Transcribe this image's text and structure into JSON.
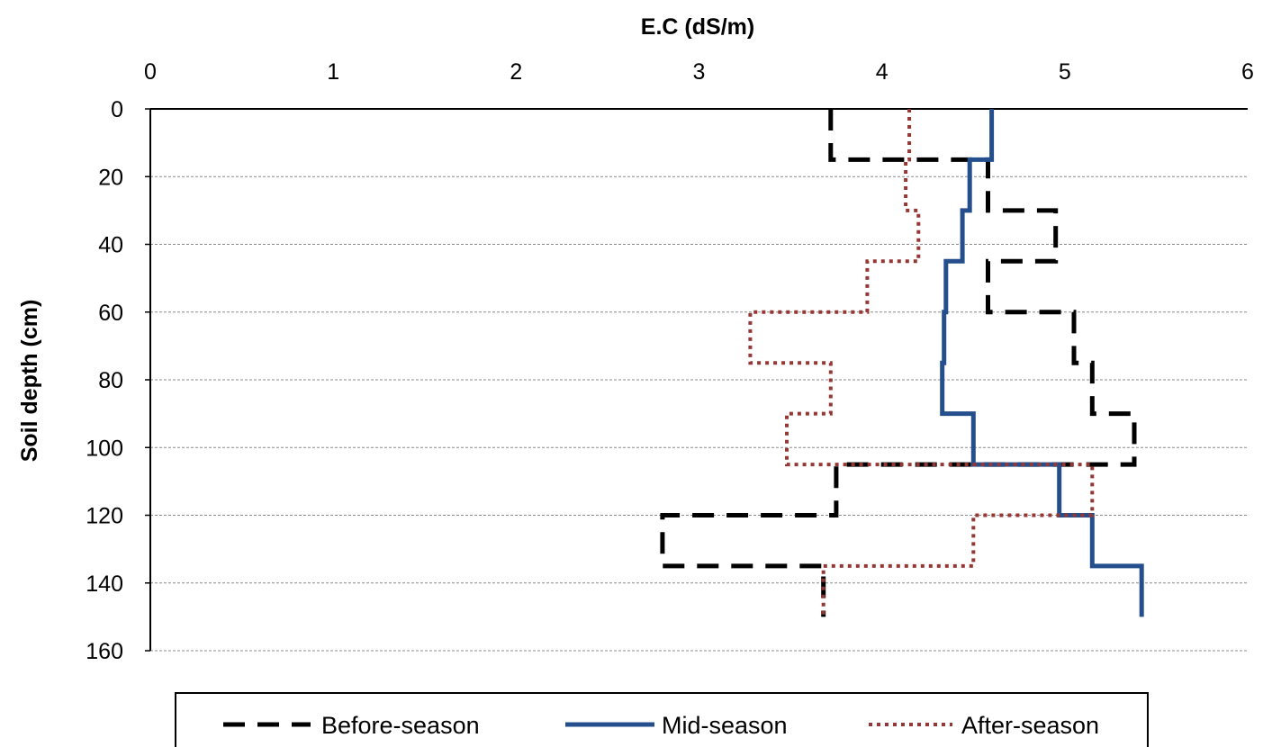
{
  "chart_data": {
    "type": "line",
    "orientation": "depth-profile",
    "xlabel": "E.C (dS/m)",
    "ylabel": "Soil depth (cm)",
    "xlim": [
      0,
      6
    ],
    "ylim": [
      0,
      160
    ],
    "y_inverted": true,
    "x_axis_position": "top",
    "x_ticks": [
      "0",
      "1",
      "2",
      "3",
      "4",
      "5",
      "6"
    ],
    "y_ticks": [
      "0",
      "20",
      "40",
      "60",
      "80",
      "100",
      "120",
      "140",
      "160"
    ],
    "grid": "horizontal dashed",
    "legend_placement": "bottom",
    "series": [
      {
        "name": "Before-season",
        "color": "#000000",
        "style": "dashed",
        "points": [
          [
            3.72,
            0
          ],
          [
            3.72,
            15
          ],
          [
            4.58,
            15
          ],
          [
            4.58,
            30
          ],
          [
            4.95,
            30
          ],
          [
            4.95,
            45
          ],
          [
            4.58,
            45
          ],
          [
            4.58,
            60
          ],
          [
            5.05,
            60
          ],
          [
            5.05,
            75
          ],
          [
            5.15,
            75
          ],
          [
            5.15,
            90
          ],
          [
            5.38,
            90
          ],
          [
            5.38,
            105
          ],
          [
            3.75,
            105
          ],
          [
            3.75,
            120
          ],
          [
            2.8,
            120
          ],
          [
            2.8,
            135
          ],
          [
            3.68,
            135
          ],
          [
            3.68,
            150
          ]
        ]
      },
      {
        "name": "Mid-season",
        "color": "#254f8c",
        "style": "solid",
        "points": [
          [
            4.6,
            0
          ],
          [
            4.6,
            15
          ],
          [
            4.48,
            15
          ],
          [
            4.48,
            30
          ],
          [
            4.44,
            30
          ],
          [
            4.44,
            45
          ],
          [
            4.35,
            45
          ],
          [
            4.35,
            60
          ],
          [
            4.34,
            60
          ],
          [
            4.34,
            75
          ],
          [
            4.33,
            75
          ],
          [
            4.33,
            90
          ],
          [
            4.5,
            90
          ],
          [
            4.5,
            105
          ],
          [
            4.97,
            105
          ],
          [
            4.97,
            120
          ],
          [
            5.15,
            120
          ],
          [
            5.15,
            135
          ],
          [
            5.42,
            135
          ],
          [
            5.42,
            150
          ]
        ]
      },
      {
        "name": "After-season",
        "color": "#953735",
        "style": "dotted",
        "points": [
          [
            4.15,
            0
          ],
          [
            4.15,
            15
          ],
          [
            4.13,
            15
          ],
          [
            4.13,
            30
          ],
          [
            4.2,
            30
          ],
          [
            4.2,
            45
          ],
          [
            3.92,
            45
          ],
          [
            3.92,
            60
          ],
          [
            3.28,
            60
          ],
          [
            3.28,
            75
          ],
          [
            3.72,
            75
          ],
          [
            3.72,
            90
          ],
          [
            3.48,
            90
          ],
          [
            3.48,
            105
          ],
          [
            5.15,
            105
          ],
          [
            5.15,
            120
          ],
          [
            4.5,
            120
          ],
          [
            4.5,
            135
          ],
          [
            3.68,
            135
          ],
          [
            3.68,
            150
          ]
        ]
      }
    ]
  }
}
